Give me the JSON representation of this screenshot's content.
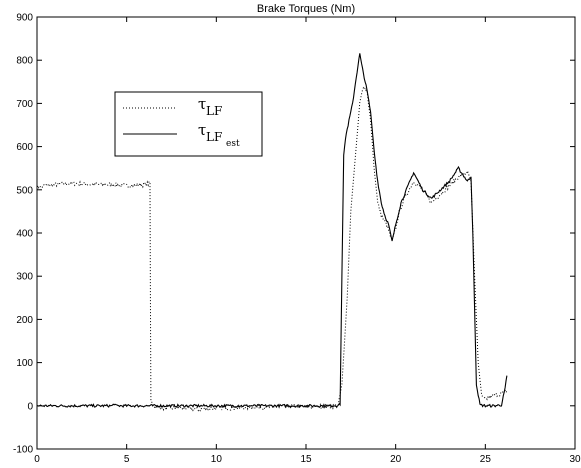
{
  "chart_data": {
    "type": "line",
    "title": "Brake Torques (Nm)",
    "xlabel": "",
    "ylabel": "",
    "xlim": [
      0,
      30
    ],
    "ylim": [
      -100,
      900
    ],
    "x_ticks": [
      0,
      5,
      10,
      15,
      20,
      25,
      30
    ],
    "y_ticks": [
      -100,
      0,
      100,
      200,
      300,
      400,
      500,
      600,
      700,
      800,
      900
    ],
    "grid": false,
    "legend_position": "upper-left",
    "series": [
      {
        "name": "τ_LF",
        "legend_main": "τ",
        "legend_sub": "LF",
        "legend_subsub": "",
        "style": "dotted",
        "color": "#000000",
        "noise": 10,
        "x": [
          0,
          0.5,
          1,
          2,
          3,
          4,
          5,
          6,
          6.3,
          6.35,
          6.5,
          7,
          8,
          9,
          10,
          11,
          12,
          13,
          14,
          15,
          16,
          16.8,
          17,
          17.3,
          17.5,
          17.8,
          18.0,
          18.2,
          18.4,
          18.6,
          18.8,
          19.0,
          19.2,
          19.5,
          19.8,
          20.0,
          20.2,
          20.5,
          21.0,
          21.5,
          22.0,
          22.5,
          23.0,
          23.5,
          24.0,
          24.2,
          24.4,
          24.6,
          24.8,
          25.0,
          25.5,
          26.0,
          26.2
        ],
        "y": [
          505,
          510,
          512,
          515,
          512,
          512,
          510,
          512,
          515,
          10,
          0,
          -5,
          -5,
          -8,
          -5,
          -5,
          -3,
          -3,
          -2,
          -2,
          -2,
          0,
          50,
          250,
          450,
          600,
          700,
          740,
          730,
          660,
          550,
          470,
          440,
          420,
          380,
          410,
          450,
          480,
          520,
          500,
          470,
          490,
          510,
          530,
          540,
          520,
          300,
          100,
          20,
          15,
          25,
          30,
          35
        ]
      },
      {
        "name": "τ_LF_est",
        "legend_main": "τ",
        "legend_sub": "LF",
        "legend_subsub": "est",
        "style": "solid",
        "color": "#000000",
        "noise": 6,
        "x": [
          0,
          4.2,
          4.3,
          4.4,
          5,
          10,
          15,
          16.5,
          16.9,
          17.0,
          17.1,
          17.2,
          17.4,
          17.6,
          17.8,
          18.0,
          18.1,
          18.2,
          18.4,
          18.6,
          18.8,
          19.0,
          19.2,
          19.4,
          19.6,
          19.8,
          20.0,
          20.3,
          20.6,
          21.0,
          21.5,
          22.0,
          22.5,
          23.0,
          23.5,
          24.0,
          24.2,
          24.3,
          24.5,
          24.7,
          25.0,
          25.5,
          25.9,
          26.1,
          26.2
        ],
        "y": [
          0,
          0,
          5,
          0,
          0,
          0,
          0,
          0,
          2,
          300,
          580,
          620,
          660,
          700,
          760,
          815,
          790,
          770,
          730,
          680,
          590,
          520,
          470,
          440,
          420,
          380,
          420,
          470,
          500,
          540,
          500,
          480,
          500,
          520,
          550,
          520,
          530,
          400,
          50,
          2,
          0,
          0,
          2,
          40,
          70
        ]
      }
    ]
  }
}
